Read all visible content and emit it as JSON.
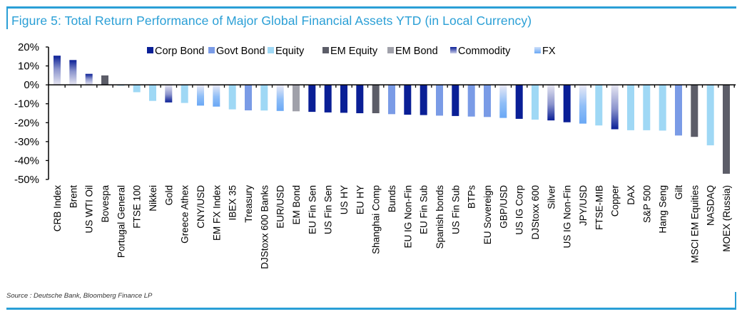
{
  "figure": {
    "title": "Figure 5: Total Return Performance of Major Global Financial Assets YTD (in Local Currency)",
    "source": "Source : Deutsche Bank, Bloomberg Finance LP"
  },
  "colors": {
    "frame": "#2a9fd6",
    "Corp Bond": "#0a1f96",
    "Govt Bond": "#7a9be6",
    "Equity": "#9fd8f5",
    "EM Equity": "#5c5d68",
    "EM Bond": "#a0a1aa",
    "Commodity_top": "#0a1f96",
    "Commodity_bottom": "#e6e6f2",
    "FX_top": "#ebeaf6",
    "FX_bottom": "#6aa8f5"
  },
  "chart_data": {
    "type": "bar",
    "title": "Figure 5: Total Return Performance of Major Global Financial Assets YTD (in Local Currency)",
    "xlabel": "",
    "ylabel": "",
    "ylim": [
      -50,
      20
    ],
    "yticks": [
      20,
      10,
      0,
      -10,
      -20,
      -30,
      -40,
      -50
    ],
    "ytick_labels": [
      "20%",
      "10%",
      "0%",
      "-10%",
      "-20%",
      "-30%",
      "-40%",
      "-50%"
    ],
    "grid": false,
    "legend_position": "top",
    "legend": [
      "Corp Bond",
      "Govt Bond",
      "Equity",
      "EM Equity",
      "EM Bond",
      "Commodity",
      "FX"
    ],
    "categories": [
      "CRB Index",
      "Brent",
      "US WTI Oil",
      "Bovespa",
      "Portugal General",
      "FTSE 100",
      "Nikkei",
      "Gold",
      "Greece Athex",
      "CNY/USD",
      "EM FX Index",
      "IBEX 35",
      "Treasury",
      "DJStoxx 600 Banks",
      "EUR/USD",
      "EM Bond",
      "EU Fin Sen",
      "US Fin Sen",
      "US HY",
      "EU HY",
      "Shanghai Comp",
      "Bunds",
      "EU IG Non-Fin",
      "EU Fin Sub",
      "Spanish bonds",
      "US Fin Sub",
      "BTPs",
      "EU Sovereign",
      "GBP/USD",
      "US IG Corp",
      "DJStoxx 600",
      "Silver",
      "US IG Non-Fin",
      "JPY/USD",
      "FTSE-MIB",
      "Copper",
      "DAX",
      "S&P 500",
      "Hang Seng",
      "Gilt",
      "MSCI EM Equities",
      "NASDAQ",
      "MOEX (Russia)"
    ],
    "values": [
      15.4,
      13.1,
      5.8,
      5.0,
      -0.5,
      -3.9,
      -8.5,
      -9.3,
      -9.6,
      -11.0,
      -11.5,
      -13.0,
      -13.5,
      -13.6,
      -13.8,
      -14.0,
      -14.3,
      -14.6,
      -14.8,
      -15.0,
      -15.0,
      -15.5,
      -15.8,
      -16.0,
      -16.3,
      -16.5,
      -16.8,
      -17.0,
      -17.5,
      -18.0,
      -18.4,
      -18.8,
      -19.8,
      -20.5,
      -21.5,
      -23.5,
      -24.0,
      -24.0,
      -24.2,
      -26.8,
      -27.5,
      -32.0,
      -47.0
    ],
    "asset_class": [
      "Commodity",
      "Commodity",
      "Commodity",
      "EM Equity",
      "Equity",
      "Equity",
      "Equity",
      "Commodity",
      "Equity",
      "FX",
      "FX",
      "Equity",
      "Govt Bond",
      "Equity",
      "FX",
      "EM Bond",
      "Corp Bond",
      "Corp Bond",
      "Corp Bond",
      "Corp Bond",
      "EM Equity",
      "Govt Bond",
      "Corp Bond",
      "Corp Bond",
      "Govt Bond",
      "Corp Bond",
      "Govt Bond",
      "Govt Bond",
      "FX",
      "Corp Bond",
      "Equity",
      "Commodity",
      "Corp Bond",
      "FX",
      "Equity",
      "Commodity",
      "Equity",
      "Equity",
      "Equity",
      "Govt Bond",
      "EM Equity",
      "Equity",
      "EM Equity"
    ]
  }
}
